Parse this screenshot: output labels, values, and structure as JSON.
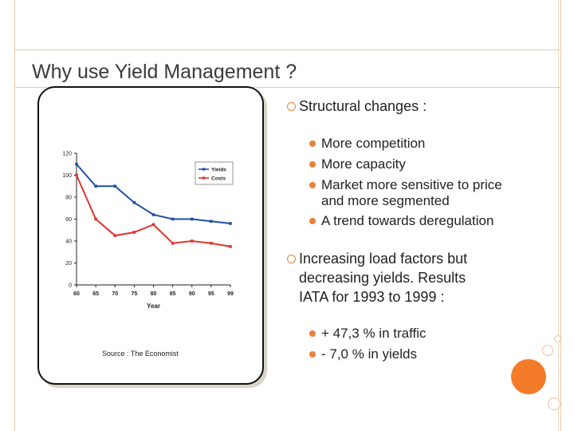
{
  "slide": {
    "title": "Why use Yield Management ?",
    "source": "Source : The Economist"
  },
  "bullets": {
    "structural": {
      "label": "Structural changes :",
      "items": [
        "More competition",
        "More capacity",
        "Market more sensitive to price",
        "and more segmented",
        "A trend towards deregulation"
      ]
    },
    "load": {
      "lines": [
        "Increasing load factors but",
        "decreasing yields. Results",
        "IATA for 1993  to 1999 :"
      ],
      "items": [
        "+ 47,3 % in traffic",
        "-  7,0 % in yields"
      ]
    }
  },
  "colors": {
    "accent": "#e8823a",
    "yields": "#1f4fa8",
    "costs": "#e0342a"
  },
  "chart_data": {
    "type": "line",
    "xlabel": "Year",
    "ylabel": "",
    "categories": [
      "60",
      "65",
      "70",
      "75",
      "80",
      "85",
      "90",
      "95",
      "99"
    ],
    "ylim": [
      0,
      120
    ],
    "yticks": [
      "0",
      "20",
      "40",
      "60",
      "80",
      "100",
      "120"
    ],
    "legend": "top-right",
    "series": [
      {
        "name": "Yields",
        "color": "#1f4fa8",
        "values": [
          110,
          90,
          90,
          75,
          64,
          60,
          60,
          58,
          56
        ]
      },
      {
        "name": "Costs",
        "color": "#e0342a",
        "values": [
          100,
          60,
          45,
          48,
          55,
          38,
          40,
          38,
          35
        ]
      }
    ]
  }
}
